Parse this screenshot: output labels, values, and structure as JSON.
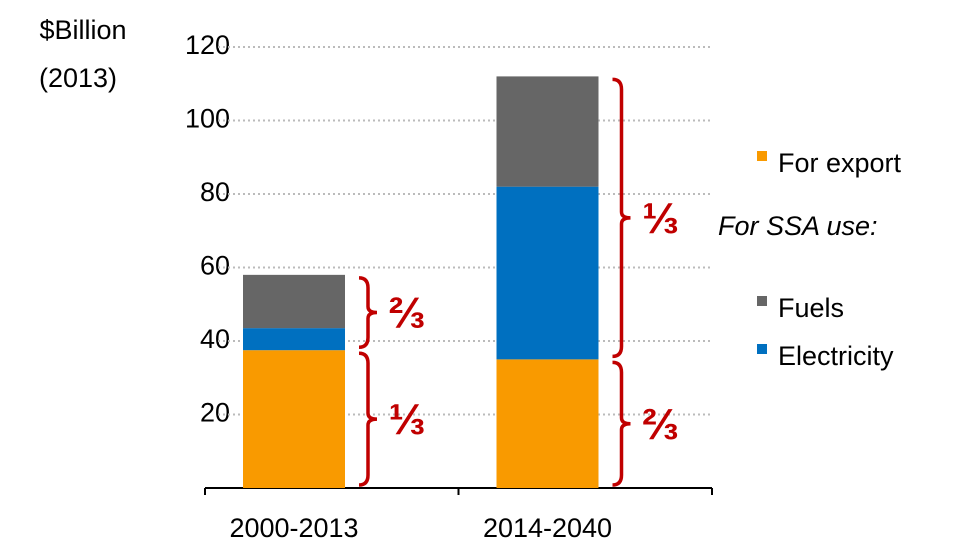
{
  "chart_data": {
    "type": "stacked_bar",
    "ylabel_lines": [
      "$Billion",
      "(2013)"
    ],
    "categories": [
      "2000-2013",
      "2014-2040"
    ],
    "series": [
      {
        "name": "For export",
        "color": "#f99a00",
        "values": [
          37.5,
          35
        ]
      },
      {
        "name": "Electricity",
        "color": "#0070c0",
        "values": [
          6,
          47
        ]
      },
      {
        "name": "Fuels",
        "color": "#666666",
        "values": [
          14.5,
          30
        ]
      }
    ],
    "legend_group_label": "For SSA use:",
    "annotations": [
      "⅔",
      "⅓",
      "⅓",
      "⅔"
    ],
    "ylim": [
      0,
      120
    ],
    "yticks": [
      20,
      40,
      60,
      80,
      100,
      120
    ],
    "grid": true
  }
}
